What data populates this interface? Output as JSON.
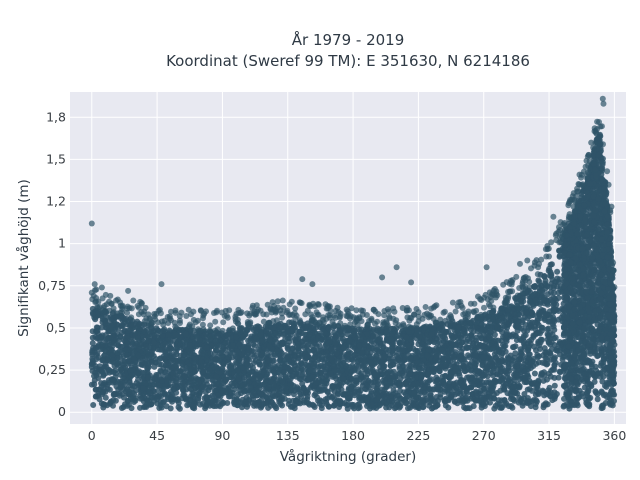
{
  "chart_data": {
    "type": "scatter",
    "title": "År 1979 - 2019",
    "subtitle": "Koordinat (Sweref 99 TM): E 351630, N 6214186",
    "xlabel": "Vågriktning (grader)",
    "ylabel": "Signifikant våghöjd (m)",
    "xlim": [
      -15,
      368
    ],
    "ylim": [
      -0.07,
      1.9
    ],
    "x_ticks": [
      0,
      45,
      90,
      135,
      180,
      225,
      270,
      315,
      360
    ],
    "x_tick_labels": [
      "0",
      "45",
      "90",
      "135",
      "180",
      "225",
      "270",
      "315",
      "360"
    ],
    "y_ticks": [
      0,
      0.25,
      0.5,
      0.75,
      1,
      1.25,
      1.5,
      1.75
    ],
    "y_tick_labels": [
      "0",
      "0,25",
      "0,5",
      "0,75",
      "1",
      "1,2",
      "1,5",
      "1,8"
    ],
    "grid": true,
    "legend": "none",
    "marker_color": "#2f5468",
    "plot_background": "#e8e9f1",
    "density_envelope": [
      {
        "x": 0,
        "y_max": 0.62
      },
      {
        "x": 20,
        "y_max": 0.58
      },
      {
        "x": 45,
        "y_max": 0.5
      },
      {
        "x": 90,
        "y_max": 0.48
      },
      {
        "x": 135,
        "y_max": 0.55
      },
      {
        "x": 180,
        "y_max": 0.5
      },
      {
        "x": 225,
        "y_max": 0.5
      },
      {
        "x": 270,
        "y_max": 0.58
      },
      {
        "x": 300,
        "y_max": 0.72
      },
      {
        "x": 320,
        "y_max": 0.95
      },
      {
        "x": 340,
        "y_max": 1.35
      },
      {
        "x": 350,
        "y_max": 1.7
      },
      {
        "x": 357,
        "y_max": 1.1
      },
      {
        "x": 360,
        "y_max": 0.65
      }
    ],
    "outliers": [
      {
        "x": 0,
        "y": 1.12
      },
      {
        "x": 2,
        "y": 0.76
      },
      {
        "x": 7,
        "y": 0.74
      },
      {
        "x": 25,
        "y": 0.72
      },
      {
        "x": 48,
        "y": 0.76
      },
      {
        "x": 145,
        "y": 0.79
      },
      {
        "x": 152,
        "y": 0.76
      },
      {
        "x": 200,
        "y": 0.8
      },
      {
        "x": 210,
        "y": 0.86
      },
      {
        "x": 220,
        "y": 0.77
      },
      {
        "x": 272,
        "y": 0.86
      },
      {
        "x": 295,
        "y": 0.88
      },
      {
        "x": 300,
        "y": 0.9
      },
      {
        "x": 305,
        "y": 0.87
      },
      {
        "x": 318,
        "y": 1.16
      },
      {
        "x": 320,
        "y": 1.06
      },
      {
        "x": 327,
        "y": 1.05
      },
      {
        "x": 332,
        "y": 1.3
      },
      {
        "x": 336,
        "y": 1.41
      },
      {
        "x": 344,
        "y": 1.6
      },
      {
        "x": 348,
        "y": 1.68
      },
      {
        "x": 352,
        "y": 1.86
      },
      {
        "x": 352.5,
        "y": 1.83
      },
      {
        "x": 355,
        "y": 1.43
      },
      {
        "x": 356,
        "y": 1.35
      },
      {
        "x": 358,
        "y": 1.22
      }
    ]
  }
}
